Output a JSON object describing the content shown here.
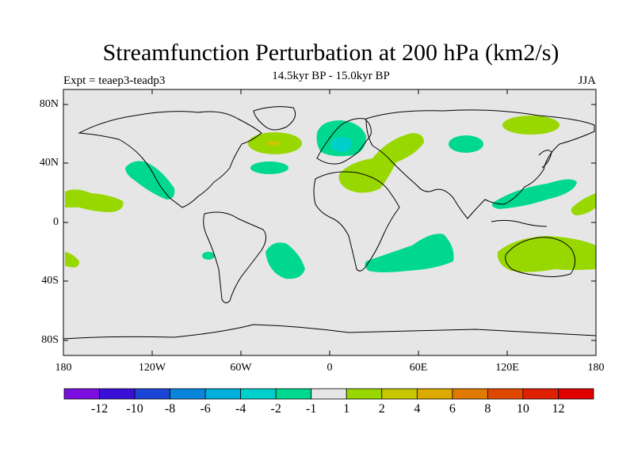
{
  "title": "Streamfunction Perturbation at 200 hPa (km2/s)",
  "subtitle": "14.5kyr BP - 15.0kyr BP",
  "experiment": "Expt = teaep3-teadp3",
  "season": "JJA",
  "lat_ticks": [
    "80N",
    "40N",
    "0",
    "40S",
    "80S"
  ],
  "lon_ticks": [
    "180",
    "120W",
    "60W",
    "0",
    "60E",
    "120E",
    "180"
  ],
  "colorbar": {
    "labels": [
      "-12",
      "-10",
      "-8",
      "-6",
      "-4",
      "-2",
      "-1",
      "1",
      "2",
      "4",
      "6",
      "8",
      "10",
      "12"
    ],
    "colors": [
      "#7a0fe0",
      "#3a0fd8",
      "#1a45d6",
      "#0a85dc",
      "#00b0dc",
      "#00d0cc",
      "#00d890",
      "#e6e6e6",
      "#98d800",
      "#c8c800",
      "#dcaa00",
      "#e07a00",
      "#e04800",
      "#e02000",
      "#e00000"
    ]
  },
  "map": {
    "background": "#e6e6e6",
    "negative_color": "#00d890",
    "negative2_color": "#00d0cc",
    "positive_color": "#98d800",
    "positive2_color": "#c8c800"
  }
}
